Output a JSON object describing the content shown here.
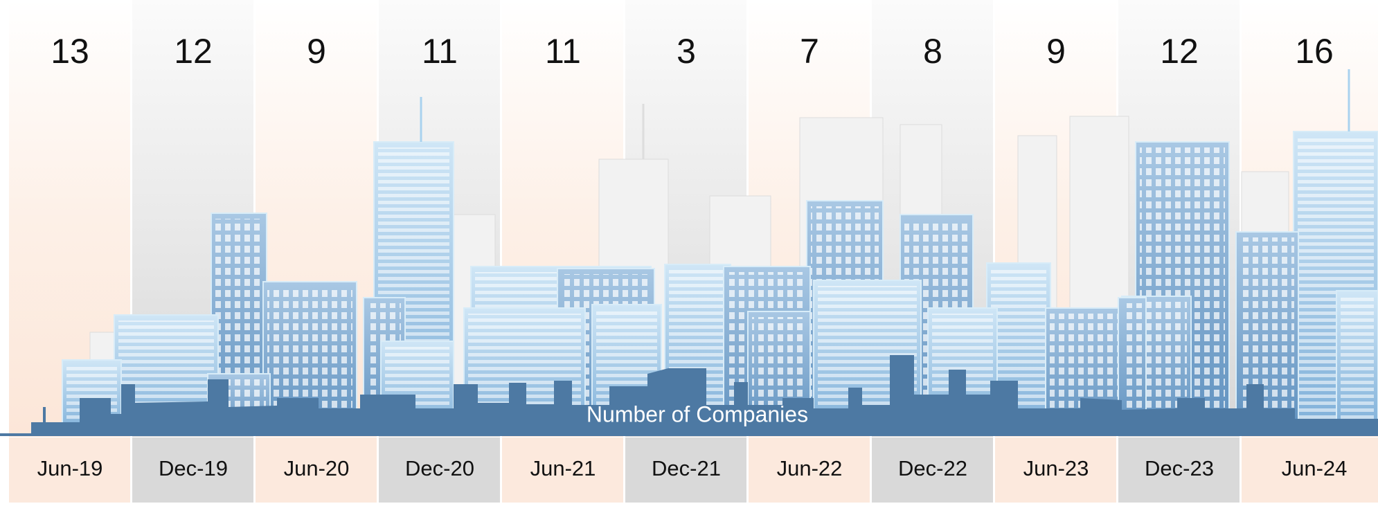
{
  "title": "Number of Companies",
  "periods": [
    {
      "label": "Jun-19",
      "value": 13
    },
    {
      "label": "Dec-19",
      "value": 12
    },
    {
      "label": "Jun-20",
      "value": 9
    },
    {
      "label": "Dec-20",
      "value": 11
    },
    {
      "label": "Jun-21",
      "value": 11
    },
    {
      "label": "Dec-21",
      "value": 3
    },
    {
      "label": "Jun-22",
      "value": 7
    },
    {
      "label": "Dec-22",
      "value": 8
    },
    {
      "label": "Jun-23",
      "value": 9
    },
    {
      "label": "Dec-23",
      "value": 12
    },
    {
      "label": "Jun-24",
      "value": 16
    }
  ]
}
